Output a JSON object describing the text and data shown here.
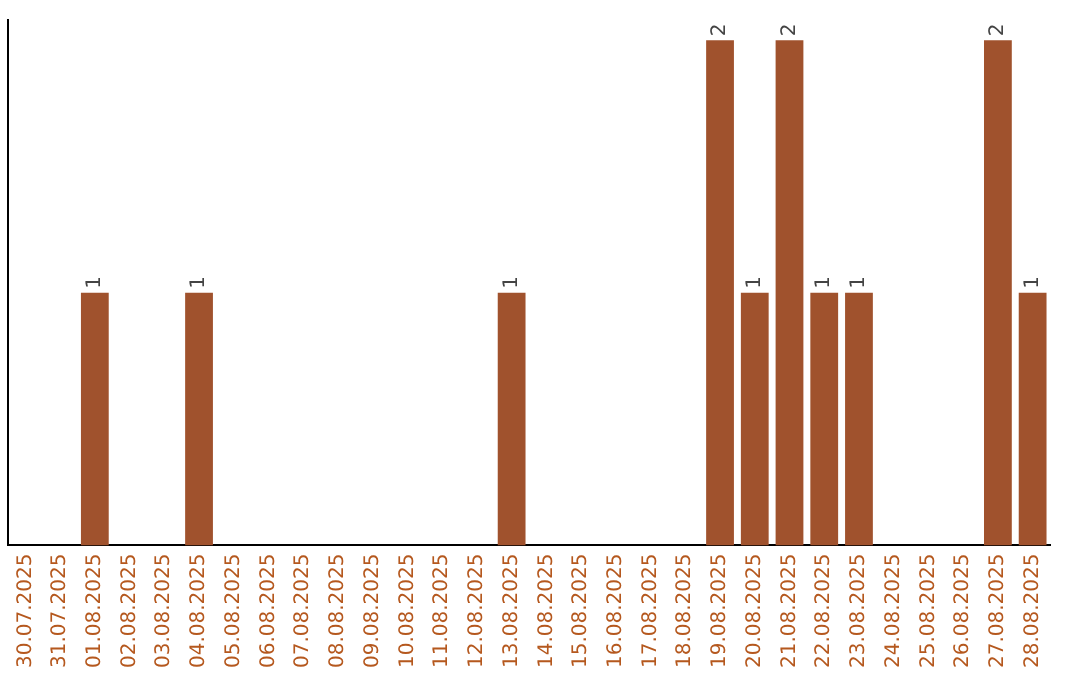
{
  "chart_data": {
    "type": "bar",
    "categories": [
      "30.07.2025",
      "31.07.2025",
      "01.08.2025",
      "02.08.2025",
      "03.08.2025",
      "04.08.2025",
      "05.08.2025",
      "06.08.2025",
      "07.08.2025",
      "08.08.2025",
      "09.08.2025",
      "10.08.2025",
      "11.08.2025",
      "12.08.2025",
      "13.08.2025",
      "14.08.2025",
      "15.08.2025",
      "16.08.2025",
      "17.08.2025",
      "18.08.2025",
      "19.08.2025",
      "20.08.2025",
      "21.08.2025",
      "22.08.2025",
      "23.08.2025",
      "24.08.2025",
      "25.08.2025",
      "26.08.2025",
      "27.08.2025",
      "28.08.2025"
    ],
    "values": [
      0,
      0,
      1,
      0,
      0,
      1,
      0,
      0,
      0,
      0,
      0,
      0,
      0,
      0,
      1,
      0,
      0,
      0,
      0,
      0,
      2,
      1,
      2,
      1,
      1,
      0,
      0,
      0,
      2,
      1
    ],
    "value_labels": [
      null,
      null,
      "1",
      null,
      null,
      "1",
      null,
      null,
      null,
      null,
      null,
      null,
      null,
      null,
      "1",
      null,
      null,
      null,
      null,
      null,
      "2",
      "1",
      "2",
      "1",
      "1",
      null,
      null,
      null,
      "2",
      "1"
    ],
    "color": "#a0522d",
    "ylim": [
      0,
      2.08
    ],
    "tick_labels": "x",
    "grid": false,
    "legend": false
  }
}
